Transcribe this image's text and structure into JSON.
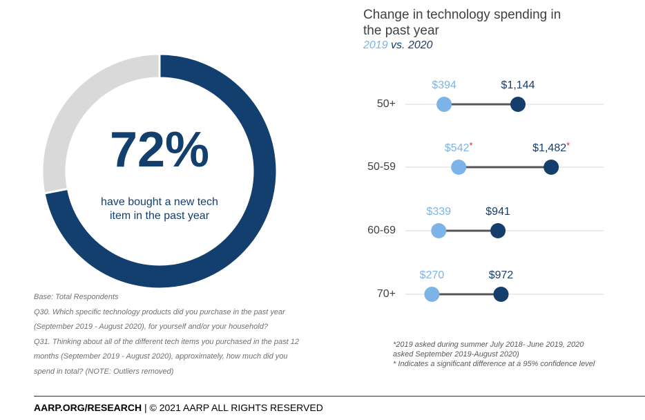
{
  "chart_data": [
    {
      "type": "donut",
      "values": [
        72,
        28
      ],
      "value_labels": [
        "72%",
        null
      ],
      "colors": [
        "#123f6d",
        "#d9d9d9"
      ],
      "caption": "have bought a new tech item in the past year"
    },
    {
      "type": "dumbbell",
      "title": "Change in technology spending in the past year",
      "subtitle_joiner": "vs.",
      "categories": [
        "50+",
        "50-59",
        "60-69",
        "70+"
      ],
      "series": [
        {
          "name": "2019",
          "color": "#7cb4e8",
          "values": [
            394,
            542,
            339,
            270
          ],
          "value_labels": [
            "$394",
            "$542",
            "$339",
            "$270"
          ]
        },
        {
          "name": "2020",
          "color": "#153e6c",
          "values": [
            1144,
            1482,
            941,
            972
          ],
          "value_labels": [
            "$1,144",
            "$1,482",
            "$941",
            "$972"
          ]
        }
      ],
      "significance_marks": [
        null,
        "*",
        null,
        null
      ],
      "significance_color": "#d9262b",
      "connector_color": "#555555",
      "xlim": [
        0,
        2000
      ]
    }
  ],
  "notes": {
    "left": [
      "Base: Total Respondents",
      "Q30. Which specific technology products did you purchase in the past year (September 2019 - August 2020), for yourself and/or your household?",
      "Q31. Thinking about all of the different tech items you purchased in the past 12 months (September 2019 - August 2020), approximately, how much did you spend in total?  (NOTE: Outliers removed)"
    ],
    "right": [
      "*2019 asked during summer July 2018- June 2019, 2020 asked September 2019-August 2020)",
      " * Indicates a significant difference at a 95% confidence level"
    ]
  },
  "footer": {
    "source": "AARP.ORG/RESEARCH",
    "rights": "| © 2021 AARP ALL RIGHTS RESERVED"
  }
}
